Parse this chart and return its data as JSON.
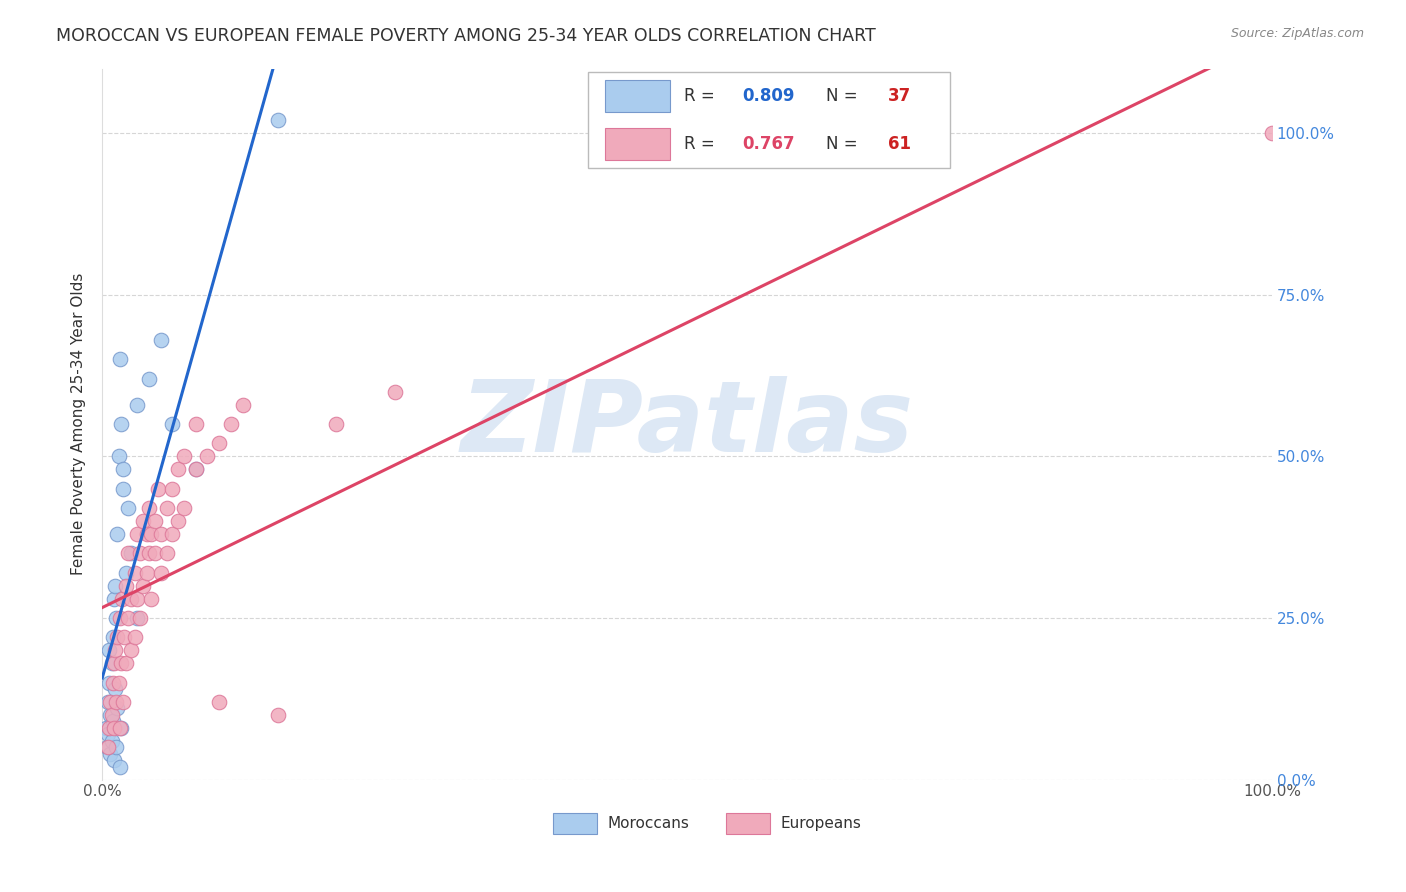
{
  "title": "MOROCCAN VS EUROPEAN FEMALE POVERTY AMONG 25-34 YEAR OLDS CORRELATION CHART",
  "source": "Source: ZipAtlas.com",
  "ylabel": "Female Poverty Among 25-34 Year Olds",
  "watermark": "ZIPatlas",
  "moroccan_R": "0.809",
  "moroccan_N": "37",
  "european_R": "0.767",
  "european_N": "61",
  "moroccan_scatter": [
    [
      0.003,
      0.08
    ],
    [
      0.004,
      0.05
    ],
    [
      0.005,
      0.12
    ],
    [
      0.005,
      0.07
    ],
    [
      0.006,
      0.2
    ],
    [
      0.006,
      0.15
    ],
    [
      0.007,
      0.1
    ],
    [
      0.007,
      0.04
    ],
    [
      0.008,
      0.18
    ],
    [
      0.008,
      0.06
    ],
    [
      0.009,
      0.22
    ],
    [
      0.009,
      0.09
    ],
    [
      0.01,
      0.28
    ],
    [
      0.01,
      0.03
    ],
    [
      0.011,
      0.14
    ],
    [
      0.011,
      0.3
    ],
    [
      0.012,
      0.25
    ],
    [
      0.012,
      0.05
    ],
    [
      0.013,
      0.38
    ],
    [
      0.013,
      0.11
    ],
    [
      0.014,
      0.5
    ],
    [
      0.015,
      0.65
    ],
    [
      0.015,
      0.02
    ],
    [
      0.016,
      0.55
    ],
    [
      0.016,
      0.08
    ],
    [
      0.018,
      0.45
    ],
    [
      0.018,
      0.48
    ],
    [
      0.02,
      0.32
    ],
    [
      0.022,
      0.42
    ],
    [
      0.025,
      0.35
    ],
    [
      0.03,
      0.58
    ],
    [
      0.03,
      0.25
    ],
    [
      0.04,
      0.62
    ],
    [
      0.05,
      0.68
    ],
    [
      0.06,
      0.55
    ],
    [
      0.08,
      0.48
    ],
    [
      0.15,
      1.02
    ]
  ],
  "european_scatter": [
    [
      0.005,
      0.05
    ],
    [
      0.006,
      0.08
    ],
    [
      0.007,
      0.12
    ],
    [
      0.008,
      0.1
    ],
    [
      0.009,
      0.15
    ],
    [
      0.01,
      0.18
    ],
    [
      0.01,
      0.08
    ],
    [
      0.011,
      0.2
    ],
    [
      0.012,
      0.12
    ],
    [
      0.013,
      0.22
    ],
    [
      0.014,
      0.15
    ],
    [
      0.015,
      0.08
    ],
    [
      0.015,
      0.25
    ],
    [
      0.016,
      0.18
    ],
    [
      0.017,
      0.28
    ],
    [
      0.018,
      0.12
    ],
    [
      0.019,
      0.22
    ],
    [
      0.02,
      0.3
    ],
    [
      0.02,
      0.18
    ],
    [
      0.022,
      0.35
    ],
    [
      0.022,
      0.25
    ],
    [
      0.025,
      0.28
    ],
    [
      0.025,
      0.2
    ],
    [
      0.028,
      0.32
    ],
    [
      0.028,
      0.22
    ],
    [
      0.03,
      0.38
    ],
    [
      0.03,
      0.28
    ],
    [
      0.032,
      0.25
    ],
    [
      0.032,
      0.35
    ],
    [
      0.035,
      0.3
    ],
    [
      0.035,
      0.4
    ],
    [
      0.038,
      0.32
    ],
    [
      0.038,
      0.38
    ],
    [
      0.04,
      0.35
    ],
    [
      0.04,
      0.42
    ],
    [
      0.042,
      0.38
    ],
    [
      0.042,
      0.28
    ],
    [
      0.045,
      0.4
    ],
    [
      0.045,
      0.35
    ],
    [
      0.048,
      0.45
    ],
    [
      0.05,
      0.38
    ],
    [
      0.05,
      0.32
    ],
    [
      0.055,
      0.42
    ],
    [
      0.055,
      0.35
    ],
    [
      0.06,
      0.45
    ],
    [
      0.06,
      0.38
    ],
    [
      0.065,
      0.48
    ],
    [
      0.065,
      0.4
    ],
    [
      0.07,
      0.5
    ],
    [
      0.07,
      0.42
    ],
    [
      0.08,
      0.48
    ],
    [
      0.08,
      0.55
    ],
    [
      0.09,
      0.5
    ],
    [
      0.1,
      0.52
    ],
    [
      0.1,
      0.12
    ],
    [
      0.11,
      0.55
    ],
    [
      0.12,
      0.58
    ],
    [
      0.15,
      0.1
    ],
    [
      0.2,
      0.55
    ],
    [
      0.25,
      0.6
    ],
    [
      1.0,
      1.0
    ]
  ],
  "moroccan_line_color": "#2266cc",
  "european_line_color": "#dd4466",
  "moroccan_dot_color": "#aaccee",
  "european_dot_color": "#f0aabb",
  "moroccan_dot_edge": "#7799cc",
  "european_dot_edge": "#dd7799",
  "background_color": "#ffffff",
  "grid_color": "#cccccc",
  "title_color": "#333333",
  "right_axis_color": "#4488dd",
  "watermark_color": "#dde8f5",
  "xlim": [
    0,
    1.0
  ],
  "ylim": [
    0,
    1.1
  ],
  "y_ticks": [
    0.0,
    0.25,
    0.5,
    0.75,
    1.0
  ],
  "y_tick_labels_right": [
    "0.0%",
    "25.0%",
    "50.0%",
    "75.0%",
    "100.0%"
  ],
  "x_ticks": [
    0.0,
    1.0
  ],
  "x_tick_labels": [
    "0.0%",
    "100.0%"
  ]
}
